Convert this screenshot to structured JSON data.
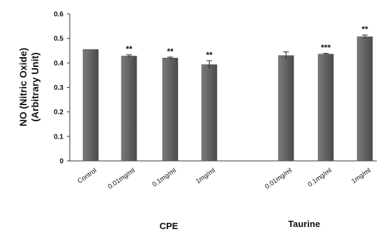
{
  "chart_data": {
    "type": "bar",
    "ylabel_lines": [
      "NO (Nitric Oxide)",
      "(Arbitrary Unit)"
    ],
    "ylim": [
      0,
      0.6
    ],
    "y_ticks": [
      "0",
      "0.1",
      "0.2",
      "0.3",
      "0.4",
      "0.5",
      "0.6"
    ],
    "grid": false,
    "bar_color": "#666666",
    "categories": [
      "Control",
      "0.01mg/ml",
      "0.1mg/ml",
      "1mg/ml",
      "0.01mg/ml",
      "0.1mg/ml",
      "1mg/ml"
    ],
    "groups": [
      "",
      "CPE",
      "CPE",
      "CPE",
      "Taurine",
      "Taurine",
      "Taurine"
    ],
    "group_labels": [
      "CPE",
      "Taurine"
    ],
    "values": [
      0.455,
      0.428,
      0.42,
      0.393,
      0.43,
      0.436,
      0.507
    ],
    "errors": [
      0.0,
      0.005,
      0.004,
      0.016,
      0.015,
      0.003,
      0.007
    ],
    "significance": [
      "",
      "**",
      "**",
      "**",
      "",
      "***",
      "**"
    ]
  }
}
